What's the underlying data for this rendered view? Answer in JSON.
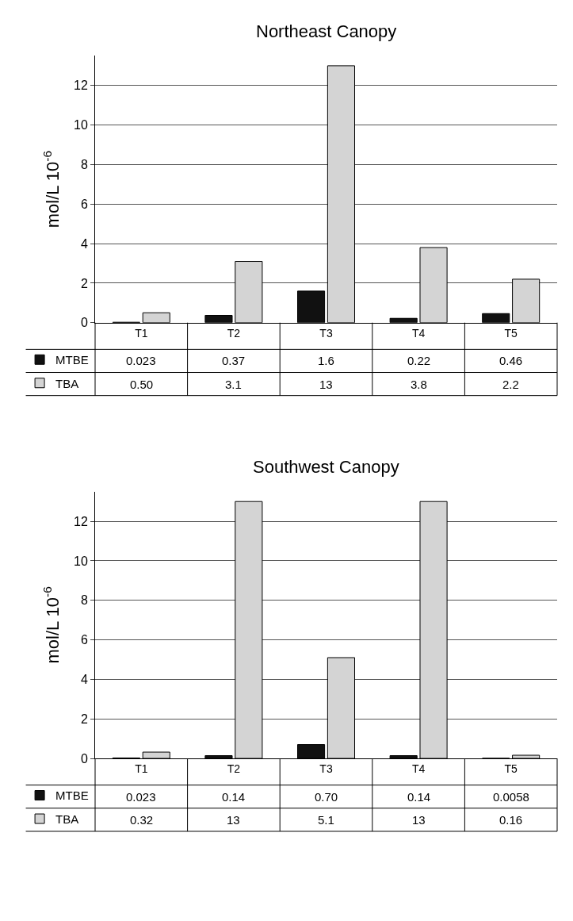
{
  "chart_data": [
    {
      "type": "bar",
      "title": "Northeast Canopy",
      "ylabel": "mol/L 10$^{-6}$",
      "categories": [
        "T1",
        "T2",
        "T3",
        "T4",
        "T5"
      ],
      "ylim": [
        0,
        13.5
      ],
      "yticks": [
        0,
        2,
        4,
        6,
        8,
        10,
        12
      ],
      "grid": "y",
      "legend": "bottom left",
      "series": [
        {
          "name": "MTBE",
          "color": "#111111",
          "values": [
            0.023,
            0.37,
            1.6,
            0.22,
            0.46
          ],
          "value_labels": [
            "0.023",
            "0.37",
            "1.6",
            "0.22",
            "0.46"
          ]
        },
        {
          "name": "TBA",
          "color": "#d4d4d4",
          "values": [
            0.5,
            3.1,
            13,
            3.8,
            2.2
          ],
          "value_labels": [
            "0.50",
            "3.1",
            "13",
            "3.8",
            "2.2"
          ]
        }
      ]
    },
    {
      "type": "bar",
      "title": "Southwest Canopy",
      "ylabel": "mol/L 10$^{-6}$",
      "categories": [
        "T1",
        "T2",
        "T3",
        "T4",
        "T5"
      ],
      "ylim": [
        0,
        13.5
      ],
      "yticks": [
        0,
        2,
        4,
        6,
        8,
        10,
        12
      ],
      "grid": "y",
      "legend": "bottom left",
      "series": [
        {
          "name": "MTBE",
          "color": "#111111",
          "values": [
            0.023,
            0.14,
            0.7,
            0.14,
            0.0058
          ],
          "value_labels": [
            "0.023",
            "0.14",
            "0.70",
            "0.14",
            "0.0058"
          ]
        },
        {
          "name": "TBA",
          "color": "#d4d4d4",
          "values": [
            0.32,
            13,
            5.1,
            13,
            0.16
          ],
          "value_labels": [
            "0.32",
            "13",
            "5.1",
            "13",
            "0.16"
          ]
        }
      ]
    }
  ]
}
